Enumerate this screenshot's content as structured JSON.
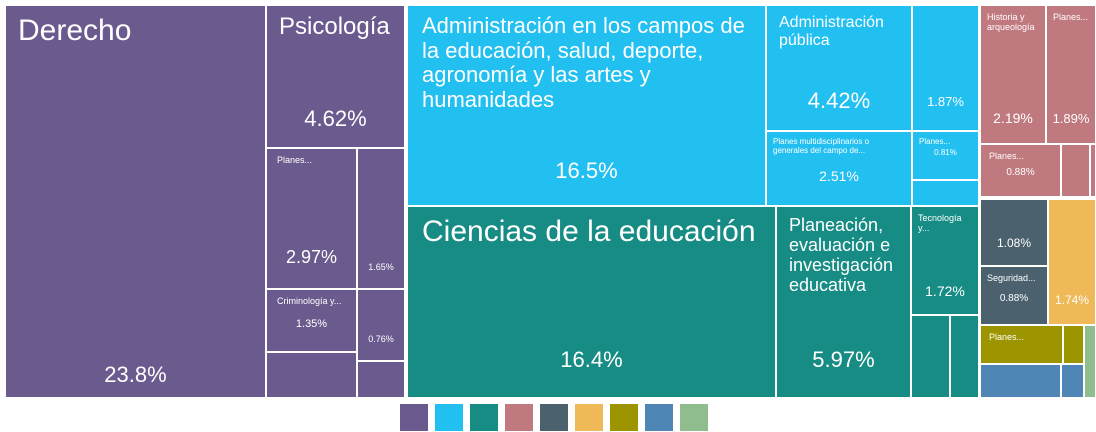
{
  "chart_data": {
    "type": "treemap",
    "groups": [
      {
        "color": "#6a5a8e",
        "items": [
          {
            "name": "Derecho",
            "value": 23.8,
            "value_label": "23.8%"
          },
          {
            "name": "Psicología",
            "value": 4.62,
            "value_label": "4.62%"
          },
          {
            "name": "Planes...",
            "value": 2.97,
            "value_label": "2.97%"
          },
          {
            "name": null,
            "value": 1.65,
            "value_label": "1.65%"
          },
          {
            "name": "Criminología y...",
            "value": 1.35,
            "value_label": "1.35%"
          },
          {
            "name": null,
            "value": 0.76,
            "value_label": "0.76%"
          },
          {
            "name": null,
            "value": 1.1
          },
          {
            "name": null,
            "value": 0.45
          }
        ]
      },
      {
        "color": "#22bff1",
        "items": [
          {
            "name": "Administración en los campos de la educación, salud, deporte, agronomía y las artes y humanidades",
            "value": 16.5,
            "value_label": "16.5%"
          },
          {
            "name": "Administración pública",
            "value": 4.42,
            "value_label": "4.42%"
          },
          {
            "name": "Planes multidisciplinarios o generales del campo de...",
            "value": 2.51,
            "value_label": "2.51%"
          },
          {
            "name": null,
            "value": 1.87,
            "value_label": "1.87%"
          },
          {
            "name": "Planes...",
            "value": 0.81,
            "value_label": "0.81%"
          },
          {
            "name": null,
            "value": 0.4
          }
        ]
      },
      {
        "color": "#168c84",
        "items": [
          {
            "name": "Ciencias de la educación",
            "value": 16.4,
            "value_label": "16.4%"
          },
          {
            "name": "Planeación, evaluación e investigación educativa",
            "value": 5.97,
            "value_label": "5.97%"
          },
          {
            "name": "Tecnología y...",
            "value": 1.72,
            "value_label": "1.72%"
          },
          {
            "name": null,
            "value": 0.75
          },
          {
            "name": null,
            "value": 0.55
          }
        ]
      },
      {
        "color": "#c0797e",
        "items": [
          {
            "name": "Historia y arqueología",
            "value": 2.19,
            "value_label": "2.19%"
          },
          {
            "name": "Planes...",
            "value": 1.89,
            "value_label": "1.89%"
          },
          {
            "name": "Planes...",
            "value": 0.88,
            "value_label": "0.88%"
          },
          {
            "name": null,
            "value": 0.35
          },
          {
            "name": null,
            "value": 0.08
          }
        ]
      },
      {
        "color": "#4b616d",
        "items": [
          {
            "name": null,
            "value": 1.08,
            "value_label": "1.08%"
          },
          {
            "name": "Seguridad...",
            "value": 0.88,
            "value_label": "0.88%"
          }
        ]
      },
      {
        "color": "#eeb956",
        "items": [
          {
            "name": null,
            "value": 1.74,
            "value_label": "1.74%"
          }
        ]
      },
      {
        "color": "#9c9500",
        "items": [
          {
            "name": "Planes...",
            "value": 0.7
          },
          {
            "name": null,
            "value": 0.18
          }
        ]
      },
      {
        "color": "#4f86b5",
        "items": [
          {
            "name": null,
            "value": 0.65
          },
          {
            "name": null,
            "value": 0.18
          }
        ]
      },
      {
        "color": "#8fbd8e",
        "items": [
          {
            "name": null,
            "value": 0.2
          }
        ]
      }
    ]
  }
}
